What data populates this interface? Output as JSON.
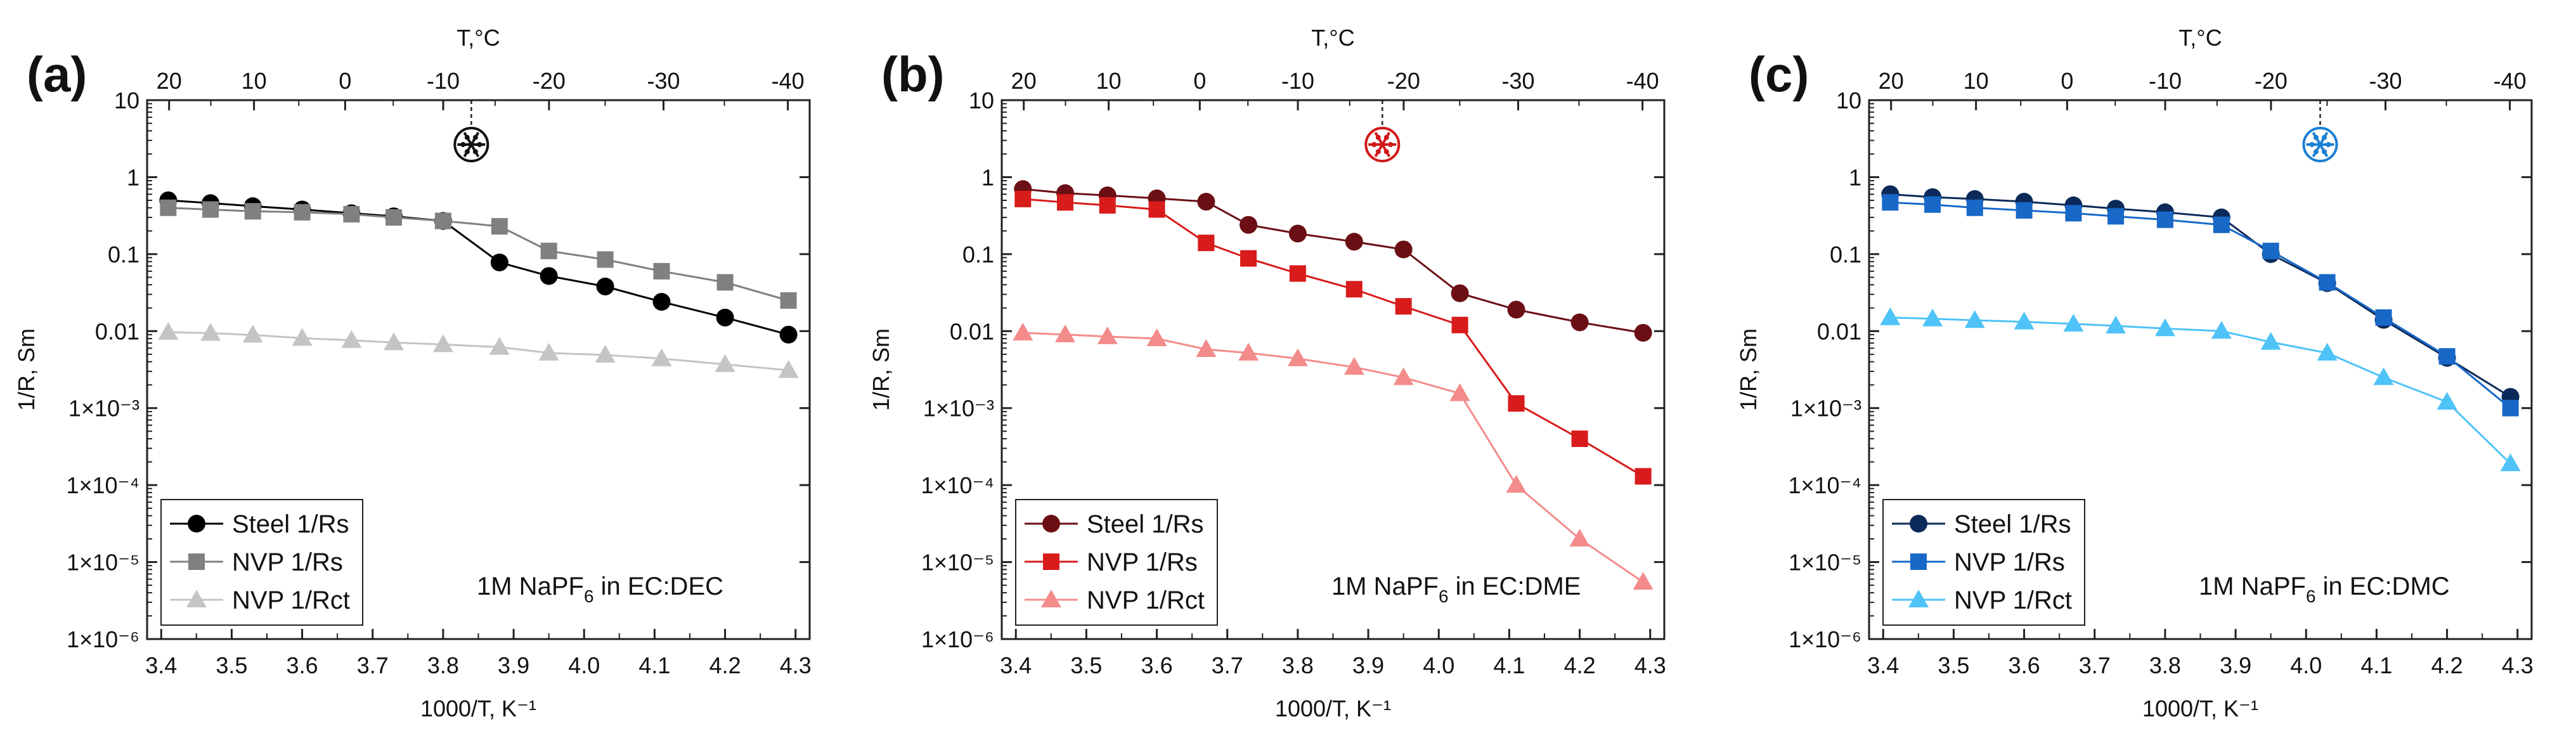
{
  "figure": {
    "panels": [
      {
        "letter": "(a)",
        "electrolyte_prefix": "1M NaPF",
        "electrolyte_sub": "6",
        "electrolyte_suffix": " in EC:DEC",
        "snowflake_color": "#111111",
        "snowflake_x": 3.84
      },
      {
        "letter": "(b)",
        "electrolyte_prefix": "1M NaPF",
        "electrolyte_sub": "6",
        "electrolyte_suffix": " in EC:DME",
        "snowflake_color": "#d01818",
        "snowflake_x": 3.92
      },
      {
        "letter": "(c)",
        "electrolyte_prefix": "1M NaPF",
        "electrolyte_sub": "6",
        "electrolyte_suffix": " in EC:DMC",
        "snowflake_color": "#1a7fd4",
        "snowflake_x": 4.02
      }
    ],
    "y_tick_labels": [
      "10",
      "1",
      "0.1",
      "0.01",
      "1×10⁻³",
      "1×10⁻⁴",
      "1×10⁻⁵",
      "1×10⁻⁶"
    ],
    "x_tick_labels": [
      "3.4",
      "3.5",
      "3.6",
      "3.7",
      "3.8",
      "3.9",
      "4.0",
      "4.1",
      "4.2",
      "4.3"
    ],
    "top_tick_labels": [
      "20",
      "10",
      "0",
      "-10",
      "-20",
      "-30",
      "-40"
    ],
    "x_axis_title": "1000/T, K⁻¹",
    "y_axis_title": "1/R, Sm",
    "top_axis_title": "T,°C"
  },
  "chart_data": [
    {
      "type": "line",
      "title": "(a) 1M NaPF6 in EC:DEC",
      "xlabel": "1000/T, K⁻¹",
      "ylabel": "1/R, Sm",
      "top_xlabel": "T,°C",
      "yscale": "log",
      "xlim": [
        3.38,
        4.32
      ],
      "ylim": [
        1e-06,
        10
      ],
      "legend_position": "bottom-left",
      "series": [
        {
          "name": "Steel 1/Rs",
          "marker": "circle",
          "color": "#000000",
          "x": [
            3.41,
            3.47,
            3.53,
            3.6,
            3.67,
            3.73,
            3.8,
            3.88,
            3.95,
            4.03,
            4.11,
            4.2,
            4.29
          ],
          "y": [
            0.5,
            0.46,
            0.42,
            0.38,
            0.34,
            0.31,
            0.27,
            0.078,
            0.052,
            0.038,
            0.024,
            0.015,
            0.009
          ]
        },
        {
          "name": "NVP 1/Rs",
          "marker": "square",
          "color": "#808080",
          "x": [
            3.41,
            3.47,
            3.53,
            3.6,
            3.67,
            3.73,
            3.8,
            3.88,
            3.95,
            4.03,
            4.11,
            4.2,
            4.29
          ],
          "y": [
            0.4,
            0.38,
            0.36,
            0.35,
            0.33,
            0.3,
            0.27,
            0.23,
            0.11,
            0.085,
            0.06,
            0.043,
            0.025
          ]
        },
        {
          "name": "NVP 1/Rct",
          "marker": "triangle",
          "color": "#c4c4c4",
          "x": [
            3.41,
            3.47,
            3.53,
            3.6,
            3.67,
            3.73,
            3.8,
            3.88,
            3.95,
            4.03,
            4.11,
            4.2,
            4.29
          ],
          "y": [
            0.0097,
            0.0094,
            0.0089,
            0.0081,
            0.0076,
            0.0071,
            0.0067,
            0.0062,
            0.0052,
            0.0049,
            0.0044,
            0.0037,
            0.0031
          ]
        }
      ]
    },
    {
      "type": "line",
      "title": "(b) 1M NaPF6 in EC:DME",
      "xlabel": "1000/T, K⁻¹",
      "ylabel": "1/R, Sm",
      "top_xlabel": "T,°C",
      "yscale": "log",
      "xlim": [
        3.38,
        4.32
      ],
      "ylim": [
        1e-06,
        10
      ],
      "legend_position": "bottom-left",
      "series": [
        {
          "name": "Steel 1/Rs",
          "marker": "circle",
          "color": "#6b0f14",
          "x": [
            3.41,
            3.47,
            3.53,
            3.6,
            3.67,
            3.73,
            3.8,
            3.88,
            3.95,
            4.03,
            4.11,
            4.2,
            4.29
          ],
          "y": [
            0.7,
            0.62,
            0.58,
            0.53,
            0.48,
            0.24,
            0.185,
            0.145,
            0.115,
            0.031,
            0.019,
            0.013,
            0.0095
          ]
        },
        {
          "name": "NVP 1/Rs",
          "marker": "square",
          "color": "#d81b1b",
          "x": [
            3.41,
            3.47,
            3.53,
            3.6,
            3.67,
            3.73,
            3.8,
            3.88,
            3.95,
            4.03,
            4.11,
            4.2,
            4.29
          ],
          "y": [
            0.52,
            0.47,
            0.43,
            0.38,
            0.14,
            0.088,
            0.056,
            0.035,
            0.021,
            0.012,
            0.00115,
            0.0004,
            0.00013
          ]
        },
        {
          "name": "NVP 1/Rct",
          "marker": "triangle",
          "color": "#f48b8b",
          "x": [
            3.41,
            3.47,
            3.53,
            3.6,
            3.67,
            3.73,
            3.8,
            3.88,
            3.95,
            4.03,
            4.11,
            4.2,
            4.29
          ],
          "y": [
            0.0095,
            0.009,
            0.0085,
            0.008,
            0.0058,
            0.0052,
            0.0044,
            0.0034,
            0.0025,
            0.00155,
            0.0001,
            2e-05,
            5.5e-06
          ]
        }
      ]
    },
    {
      "type": "line",
      "title": "(c) 1M NaPF6 in EC:DMC",
      "xlabel": "1000/T, K⁻¹",
      "ylabel": "1/R, Sm",
      "top_xlabel": "T,°C",
      "yscale": "log",
      "xlim": [
        3.38,
        4.32
      ],
      "ylim": [
        1e-06,
        10
      ],
      "legend_position": "bottom-left",
      "series": [
        {
          "name": "Steel 1/Rs",
          "marker": "circle",
          "color": "#0b2a5a",
          "x": [
            3.41,
            3.47,
            3.53,
            3.6,
            3.67,
            3.73,
            3.8,
            3.88,
            3.95,
            4.03,
            4.11,
            4.2,
            4.29
          ],
          "y": [
            0.6,
            0.55,
            0.52,
            0.48,
            0.43,
            0.39,
            0.35,
            0.3,
            0.1,
            0.042,
            0.014,
            0.0045,
            0.0014
          ]
        },
        {
          "name": "NVP 1/Rs",
          "marker": "square",
          "color": "#1868c8",
          "x": [
            3.41,
            3.47,
            3.53,
            3.6,
            3.67,
            3.73,
            3.8,
            3.88,
            3.95,
            4.03,
            4.11,
            4.2,
            4.29
          ],
          "y": [
            0.47,
            0.44,
            0.4,
            0.37,
            0.34,
            0.31,
            0.28,
            0.24,
            0.11,
            0.043,
            0.015,
            0.0047,
            0.001
          ]
        },
        {
          "name": "NVP 1/Rct",
          "marker": "triangle",
          "color": "#4fc3f7",
          "x": [
            3.41,
            3.47,
            3.53,
            3.6,
            3.67,
            3.73,
            3.8,
            3.88,
            3.95,
            4.03,
            4.11,
            4.2,
            4.29
          ],
          "y": [
            0.015,
            0.0145,
            0.0138,
            0.0132,
            0.0124,
            0.0117,
            0.0108,
            0.01,
            0.0072,
            0.0052,
            0.0025,
            0.0012,
            0.00019
          ]
        }
      ]
    }
  ]
}
